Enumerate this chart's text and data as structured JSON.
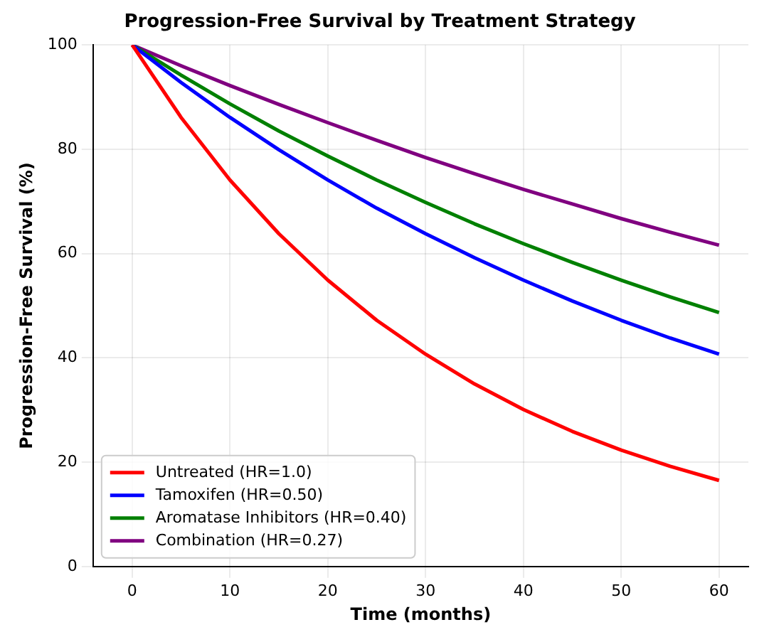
{
  "chart_data": {
    "type": "line",
    "title": "Progression-Free Survival by Treatment Strategy",
    "xlabel": "Time (months)",
    "ylabel": "Progression-Free Survival (%)",
    "x": [
      0,
      5,
      10,
      15,
      20,
      25,
      30,
      35,
      40,
      45,
      50,
      55,
      60
    ],
    "series": [
      {
        "name": "Untreated (HR=1.0)",
        "color": "#ff0000",
        "values": [
          100,
          86.1,
          74.1,
          63.8,
          54.9,
          47.2,
          40.7,
          35.0,
          30.1,
          25.9,
          22.3,
          19.2,
          16.5
        ]
      },
      {
        "name": "Tamoxifen (HR=0.50)",
        "color": "#0000ff",
        "values": [
          100,
          92.8,
          86.1,
          79.9,
          74.1,
          68.7,
          63.8,
          59.2,
          54.9,
          50.9,
          47.2,
          43.8,
          40.7
        ]
      },
      {
        "name": "Aromatase Inhibitors (HR=0.40)",
        "color": "#008000",
        "values": [
          100,
          94.2,
          88.7,
          83.5,
          78.7,
          74.1,
          69.8,
          65.7,
          61.9,
          58.3,
          54.9,
          51.7,
          48.7
        ]
      },
      {
        "name": "Combination (HR=0.27)",
        "color": "#800080",
        "values": [
          100,
          96.0,
          92.2,
          88.6,
          85.1,
          81.7,
          78.4,
          75.3,
          72.3,
          69.5,
          66.7,
          64.1,
          61.6
        ]
      }
    ],
    "xlim": [
      -4,
      63
    ],
    "xticks": [
      0,
      10,
      20,
      30,
      40,
      50,
      60
    ],
    "ylim": [
      0,
      100
    ],
    "yticks": [
      0,
      20,
      40,
      60,
      80,
      100
    ],
    "grid": true,
    "legend": "bottom left",
    "marker": "none",
    "line_style": "solid"
  }
}
